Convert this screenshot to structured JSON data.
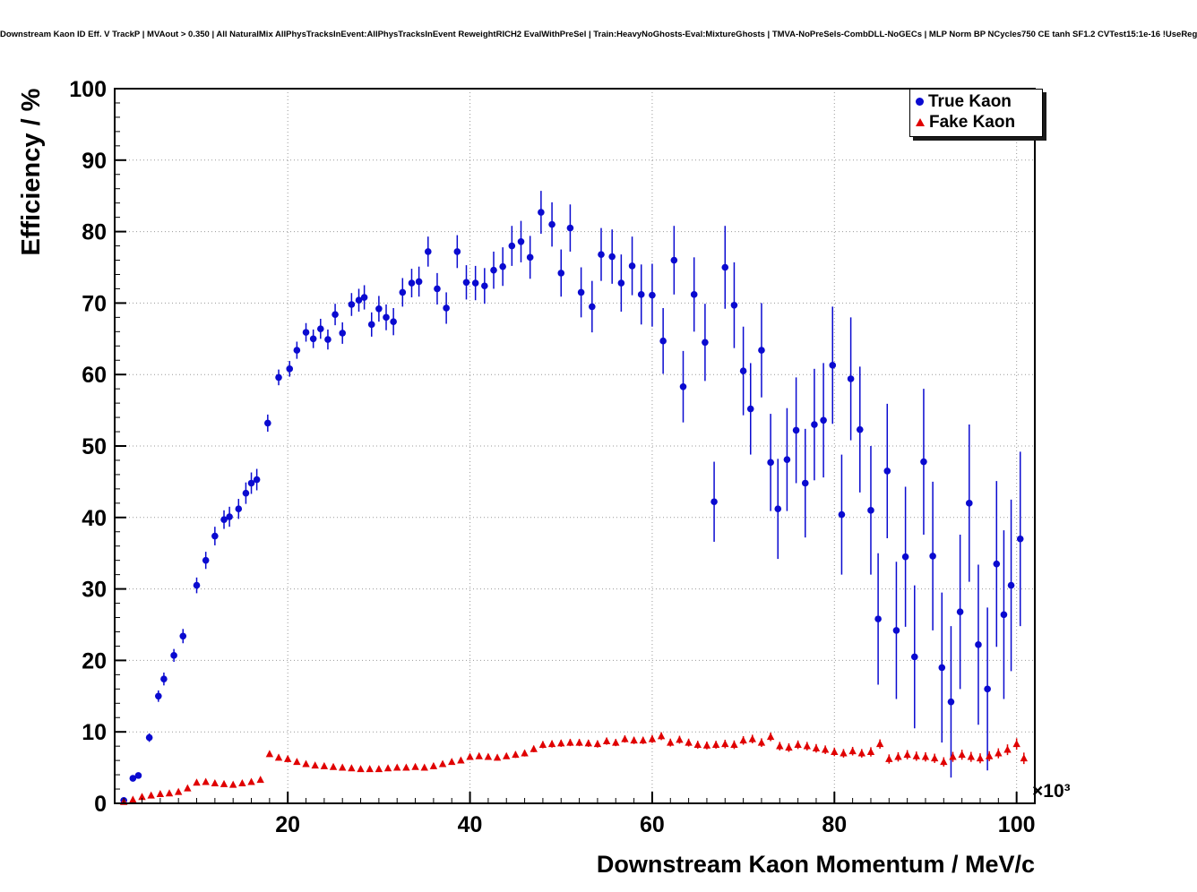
{
  "title": "Downstream Kaon ID Eff. V TrackP | MVAout > 0.350 | All NaturalMix AllPhysTracksInEvent:AllPhysTracksInEvent ReweightRICH2 EvalWithPreSel | Train:HeavyNoGhosts-Eval:MixtureGhosts | TMVA-NoPreSels-CombDLL-NoGECs | MLP Norm BP NCycles750 CE tanh SF1.2 CVTest15:1e-16 !UseReg",
  "axes": {
    "x_ticks": [
      20,
      40,
      60,
      80,
      100
    ],
    "y_ticks": [
      0,
      10,
      20,
      30,
      40,
      50,
      60,
      70,
      80,
      90,
      100
    ],
    "x_exponent": "×10³",
    "grid_color": "#999999",
    "frame_color": "#000000"
  },
  "chart_data": {
    "type": "scatter",
    "title": "Downstream Kaon ID Eff. V TrackP | MVAout > 0.350",
    "xlabel": "Downstream Kaon Momentum / MeV/c",
    "ylabel": "Efficiency / %",
    "x_unit_multiplier": "×10³",
    "xlim": [
      1,
      102
    ],
    "ylim": [
      0,
      100
    ],
    "grid": true,
    "legend_position": "top-right",
    "series": [
      {
        "name": "True Kaon",
        "marker": "circle",
        "color": "#0a0ad0",
        "points": [
          [
            2,
            0.4,
            0.2
          ],
          [
            3,
            3.5,
            0.4
          ],
          [
            3.6,
            3.9,
            0.4
          ],
          [
            4.8,
            9.2,
            0.6
          ],
          [
            5.8,
            15.0,
            0.8
          ],
          [
            6.4,
            17.4,
            0.9
          ],
          [
            7.5,
            20.7,
            0.9
          ],
          [
            8.5,
            23.4,
            1.0
          ],
          [
            10,
            30.5,
            1.1
          ],
          [
            11,
            34.0,
            1.2
          ],
          [
            12,
            37.4,
            1.3
          ],
          [
            13,
            39.7,
            1.3
          ],
          [
            13.6,
            40.1,
            1.4
          ],
          [
            14.6,
            41.2,
            1.4
          ],
          [
            15.4,
            43.4,
            1.5
          ],
          [
            16,
            44.8,
            1.5
          ],
          [
            16.6,
            45.3,
            1.5
          ],
          [
            17.8,
            53.2,
            1.2
          ],
          [
            19,
            59.6,
            1.1
          ],
          [
            20.2,
            60.8,
            1.1
          ],
          [
            21,
            63.4,
            1.2
          ],
          [
            22,
            65.9,
            1.3
          ],
          [
            22.8,
            65.0,
            1.3
          ],
          [
            23.6,
            66.4,
            1.4
          ],
          [
            24.4,
            64.9,
            1.4
          ],
          [
            25.2,
            68.4,
            1.5
          ],
          [
            26,
            65.8,
            1.5
          ],
          [
            27,
            69.8,
            1.6
          ],
          [
            27.8,
            70.4,
            1.6
          ],
          [
            28.4,
            70.8,
            1.7
          ],
          [
            29.2,
            67.0,
            1.7
          ],
          [
            30,
            69.2,
            1.8
          ],
          [
            30.8,
            68.0,
            1.8
          ],
          [
            31.6,
            67.4,
            1.9
          ],
          [
            32.6,
            71.5,
            2.0
          ],
          [
            33.6,
            72.8,
            2.0
          ],
          [
            34.4,
            73.0,
            2.1
          ],
          [
            35.4,
            77.2,
            2.1
          ],
          [
            36.4,
            72.0,
            2.2
          ],
          [
            37.4,
            69.3,
            2.2
          ],
          [
            38.6,
            77.2,
            2.3
          ],
          [
            39.6,
            72.9,
            2.4
          ],
          [
            40.6,
            72.8,
            2.4
          ],
          [
            41.6,
            72.4,
            2.5
          ],
          [
            42.6,
            74.6,
            2.6
          ],
          [
            43.6,
            75.1,
            2.7
          ],
          [
            44.6,
            78.0,
            2.8
          ],
          [
            45.6,
            78.6,
            2.9
          ],
          [
            46.6,
            76.4,
            3.0
          ],
          [
            47.8,
            82.7,
            3.0
          ],
          [
            49,
            81.0,
            3.1
          ],
          [
            50,
            74.2,
            3.3
          ],
          [
            51,
            80.5,
            3.3
          ],
          [
            52.2,
            71.5,
            3.5
          ],
          [
            53.4,
            69.5,
            3.6
          ],
          [
            54.4,
            76.8,
            3.7
          ],
          [
            55.6,
            76.5,
            3.8
          ],
          [
            56.6,
            72.8,
            4.0
          ],
          [
            57.8,
            75.2,
            4.1
          ],
          [
            58.8,
            71.2,
            4.2
          ],
          [
            60,
            71.1,
            4.4
          ],
          [
            61.2,
            64.7,
            4.6
          ],
          [
            62.4,
            76.0,
            4.8
          ],
          [
            63.4,
            58.3,
            5.0
          ],
          [
            64.6,
            71.2,
            5.2
          ],
          [
            65.8,
            64.5,
            5.4
          ],
          [
            66.8,
            42.2,
            5.6
          ],
          [
            68,
            75.0,
            5.8
          ],
          [
            69,
            69.7,
            6.0
          ],
          [
            70,
            60.5,
            6.2
          ],
          [
            70.8,
            55.2,
            6.4
          ],
          [
            72,
            63.4,
            6.6
          ],
          [
            73,
            47.7,
            6.8
          ],
          [
            73.8,
            41.2,
            7.0
          ],
          [
            74.8,
            48.1,
            7.2
          ],
          [
            75.8,
            52.2,
            7.4
          ],
          [
            76.8,
            44.8,
            7.6
          ],
          [
            77.8,
            53.0,
            7.8
          ],
          [
            78.8,
            53.6,
            8.0
          ],
          [
            79.8,
            61.3,
            8.2
          ],
          [
            80.8,
            40.4,
            8.4
          ],
          [
            81.8,
            59.4,
            8.6
          ],
          [
            82.8,
            52.3,
            8.8
          ],
          [
            84,
            41.0,
            9.0
          ],
          [
            84.8,
            25.8,
            9.2
          ],
          [
            85.8,
            46.5,
            9.4
          ],
          [
            86.8,
            24.2,
            9.6
          ],
          [
            87.8,
            34.5,
            9.8
          ],
          [
            88.8,
            20.5,
            10.0
          ],
          [
            89.8,
            47.8,
            10.2
          ],
          [
            90.8,
            34.6,
            10.4
          ],
          [
            91.8,
            19.0,
            10.5
          ],
          [
            92.8,
            14.2,
            10.6
          ],
          [
            93.8,
            26.8,
            10.8
          ],
          [
            94.8,
            42.0,
            11.0
          ],
          [
            95.8,
            22.2,
            11.2
          ],
          [
            96.8,
            16.0,
            11.4
          ],
          [
            97.8,
            33.5,
            11.6
          ],
          [
            98.6,
            26.4,
            11.8
          ],
          [
            99.4,
            30.5,
            12.0
          ],
          [
            100.4,
            37.0,
            12.2
          ]
        ]
      },
      {
        "name": "Fake Kaon",
        "marker": "triangle-up",
        "color": "#e00000",
        "points": [
          [
            2,
            0.2,
            0.1
          ],
          [
            3,
            0.5,
            0.15
          ],
          [
            4,
            0.9,
            0.2
          ],
          [
            5,
            1.1,
            0.2
          ],
          [
            6,
            1.3,
            0.2
          ],
          [
            7,
            1.4,
            0.25
          ],
          [
            8,
            1.6,
            0.25
          ],
          [
            9,
            2.1,
            0.3
          ],
          [
            10,
            2.9,
            0.3
          ],
          [
            11,
            3.0,
            0.3
          ],
          [
            12,
            2.8,
            0.3
          ],
          [
            13,
            2.7,
            0.3
          ],
          [
            14,
            2.6,
            0.3
          ],
          [
            15,
            2.8,
            0.3
          ],
          [
            16,
            3.0,
            0.35
          ],
          [
            17,
            3.3,
            0.35
          ],
          [
            18,
            6.9,
            0.4
          ],
          [
            19,
            6.4,
            0.4
          ],
          [
            20,
            6.2,
            0.4
          ],
          [
            21,
            5.8,
            0.4
          ],
          [
            22,
            5.5,
            0.35
          ],
          [
            23,
            5.3,
            0.35
          ],
          [
            24,
            5.2,
            0.35
          ],
          [
            25,
            5.1,
            0.35
          ],
          [
            26,
            5.0,
            0.35
          ],
          [
            27,
            4.9,
            0.35
          ],
          [
            28,
            4.8,
            0.35
          ],
          [
            29,
            4.8,
            0.35
          ],
          [
            30,
            4.8,
            0.35
          ],
          [
            31,
            4.9,
            0.35
          ],
          [
            32,
            5.0,
            0.35
          ],
          [
            33,
            5.0,
            0.35
          ],
          [
            34,
            5.1,
            0.35
          ],
          [
            35,
            5.0,
            0.35
          ],
          [
            36,
            5.2,
            0.4
          ],
          [
            37,
            5.5,
            0.4
          ],
          [
            38,
            5.8,
            0.4
          ],
          [
            39,
            6.0,
            0.4
          ],
          [
            40,
            6.5,
            0.4
          ],
          [
            41,
            6.6,
            0.4
          ],
          [
            42,
            6.5,
            0.4
          ],
          [
            43,
            6.4,
            0.4
          ],
          [
            44,
            6.6,
            0.4
          ],
          [
            45,
            6.8,
            0.45
          ],
          [
            46,
            7.0,
            0.45
          ],
          [
            47,
            7.6,
            0.45
          ],
          [
            48,
            8.2,
            0.5
          ],
          [
            49,
            8.3,
            0.5
          ],
          [
            50,
            8.4,
            0.5
          ],
          [
            51,
            8.5,
            0.5
          ],
          [
            52,
            8.5,
            0.5
          ],
          [
            53,
            8.4,
            0.5
          ],
          [
            54,
            8.3,
            0.5
          ],
          [
            55,
            8.7,
            0.5
          ],
          [
            56,
            8.5,
            0.5
          ],
          [
            57,
            9.0,
            0.5
          ],
          [
            58,
            8.8,
            0.5
          ],
          [
            59,
            8.8,
            0.5
          ],
          [
            60,
            9.0,
            0.55
          ],
          [
            61,
            9.4,
            0.55
          ],
          [
            62,
            8.5,
            0.55
          ],
          [
            63,
            8.9,
            0.55
          ],
          [
            64,
            8.5,
            0.55
          ],
          [
            65,
            8.2,
            0.55
          ],
          [
            66,
            8.1,
            0.55
          ],
          [
            67,
            8.2,
            0.55
          ],
          [
            68,
            8.3,
            0.6
          ],
          [
            69,
            8.2,
            0.6
          ],
          [
            70,
            8.8,
            0.6
          ],
          [
            71,
            9.0,
            0.6
          ],
          [
            72,
            8.5,
            0.6
          ],
          [
            73,
            9.3,
            0.6
          ],
          [
            74,
            8.0,
            0.6
          ],
          [
            75,
            7.8,
            0.6
          ],
          [
            76,
            8.2,
            0.6
          ],
          [
            77,
            8.0,
            0.6
          ],
          [
            78,
            7.7,
            0.6
          ],
          [
            79,
            7.5,
            0.6
          ],
          [
            80,
            7.2,
            0.6
          ],
          [
            81,
            7.0,
            0.6
          ],
          [
            82,
            7.3,
            0.6
          ],
          [
            83,
            7.0,
            0.6
          ],
          [
            84,
            7.2,
            0.65
          ],
          [
            85,
            8.3,
            0.65
          ],
          [
            86,
            6.2,
            0.65
          ],
          [
            87,
            6.5,
            0.65
          ],
          [
            88,
            6.8,
            0.65
          ],
          [
            89,
            6.6,
            0.65
          ],
          [
            90,
            6.5,
            0.65
          ],
          [
            91,
            6.3,
            0.65
          ],
          [
            92,
            5.8,
            0.65
          ],
          [
            93,
            6.5,
            0.7
          ],
          [
            94,
            6.8,
            0.7
          ],
          [
            95,
            6.5,
            0.7
          ],
          [
            96,
            6.3,
            0.7
          ],
          [
            97,
            6.6,
            0.7
          ],
          [
            98,
            7.0,
            0.7
          ],
          [
            99,
            7.5,
            0.75
          ],
          [
            100,
            8.3,
            0.8
          ],
          [
            100.8,
            6.3,
            0.8
          ]
        ]
      }
    ]
  }
}
